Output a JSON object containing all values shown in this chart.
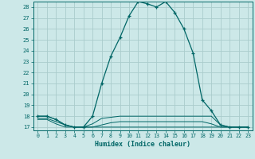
{
  "title": "",
  "xlabel": "Humidex (Indice chaleur)",
  "xlim": [
    -0.5,
    23.5
  ],
  "ylim": [
    16.7,
    28.5
  ],
  "yticks": [
    17,
    18,
    19,
    20,
    21,
    22,
    23,
    24,
    25,
    26,
    27,
    28
  ],
  "xticks": [
    0,
    1,
    2,
    3,
    4,
    5,
    6,
    7,
    8,
    9,
    10,
    11,
    12,
    13,
    14,
    15,
    16,
    17,
    18,
    19,
    20,
    21,
    22,
    23
  ],
  "bg_color": "#cce8e8",
  "line_color": "#006666",
  "grid_color": "#aacccc",
  "lines": [
    {
      "x": [
        0,
        1,
        2,
        3,
        4,
        5,
        6,
        7,
        8,
        9,
        10,
        11,
        12,
        13,
        14,
        15,
        16,
        17,
        18,
        19,
        20,
        21,
        22,
        23
      ],
      "y": [
        18.0,
        18.0,
        17.7,
        17.2,
        17.0,
        17.0,
        18.0,
        21.0,
        23.5,
        25.2,
        27.2,
        28.5,
        28.3,
        28.0,
        28.5,
        27.5,
        26.0,
        23.8,
        19.5,
        18.5,
        17.2,
        17.0,
        17.0,
        17.0
      ],
      "marker": true
    },
    {
      "x": [
        0,
        1,
        2,
        3,
        4,
        5,
        6,
        7,
        8,
        9,
        10,
        11,
        12,
        13,
        14,
        15,
        16,
        17,
        18,
        19,
        20,
        21,
        22,
        23
      ],
      "y": [
        18.0,
        18.0,
        17.7,
        17.2,
        17.0,
        17.0,
        17.3,
        17.8,
        17.9,
        18.0,
        18.0,
        18.0,
        18.0,
        18.0,
        18.0,
        18.0,
        18.0,
        18.0,
        18.0,
        18.0,
        17.2,
        17.0,
        17.0,
        17.0
      ],
      "marker": false
    },
    {
      "x": [
        0,
        1,
        2,
        3,
        4,
        5,
        6,
        7,
        8,
        9,
        10,
        11,
        12,
        13,
        14,
        15,
        16,
        17,
        18,
        19,
        20,
        21,
        22,
        23
      ],
      "y": [
        17.8,
        17.8,
        17.5,
        17.2,
        17.0,
        17.0,
        17.0,
        17.2,
        17.4,
        17.5,
        17.5,
        17.5,
        17.5,
        17.5,
        17.5,
        17.5,
        17.5,
        17.5,
        17.5,
        17.3,
        17.0,
        17.0,
        17.0,
        17.0
      ],
      "marker": false
    },
    {
      "x": [
        0,
        1,
        2,
        3,
        4,
        5,
        6,
        7,
        8,
        9,
        10,
        11,
        12,
        13,
        14,
        15,
        16,
        17,
        18,
        19,
        20,
        21,
        22,
        23
      ],
      "y": [
        17.7,
        17.7,
        17.3,
        17.0,
        17.0,
        17.0,
        17.0,
        17.0,
        17.0,
        17.0,
        17.0,
        17.0,
        17.0,
        17.0,
        17.0,
        17.0,
        17.0,
        17.0,
        17.0,
        17.0,
        17.0,
        17.0,
        17.0,
        17.0
      ],
      "marker": false
    }
  ]
}
